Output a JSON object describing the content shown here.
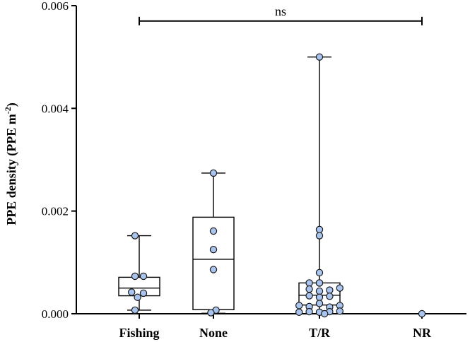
{
  "chart_data": {
    "type": "box",
    "xlabel": "",
    "ylabel": "PPE density (PPE m",
    "ylabel_sup": "-2",
    "ylabel_suffix": ")",
    "ylim": [
      0,
      0.006
    ],
    "yticks": [
      0,
      0.002,
      0.004,
      0.006
    ],
    "ytick_labels": [
      "0.000",
      "0.002",
      "0.004",
      "0.006"
    ],
    "categories": [
      "Fishing",
      "None",
      "T/R",
      "NR"
    ],
    "point_color": "#a9c4ef",
    "groups": [
      {
        "category": "Fishing",
        "min": 7e-05,
        "q1": 0.00035,
        "median": 0.0005,
        "q3": 0.00071,
        "max": 0.00152,
        "points": [
          {
            "x": -0.5,
            "y": 0.00152
          },
          {
            "x": -0.5,
            "y": 0.00073
          },
          {
            "x": 0.5,
            "y": 0.00073
          },
          {
            "x": -0.9,
            "y": 0.00042
          },
          {
            "x": 0.5,
            "y": 0.0004
          },
          {
            "x": -0.2,
            "y": 0.00032
          },
          {
            "x": -0.5,
            "y": 7e-05
          }
        ]
      },
      {
        "category": "None",
        "min": 1e-05,
        "q1": 8e-05,
        "median": 0.00106,
        "q3": 0.00188,
        "max": 0.00274,
        "points": [
          {
            "x": 0.0,
            "y": 0.00274
          },
          {
            "x": 0.0,
            "y": 0.00161
          },
          {
            "x": 0.0,
            "y": 0.00125
          },
          {
            "x": 0.0,
            "y": 0.00086
          },
          {
            "x": 0.3,
            "y": 7e-05
          },
          {
            "x": -0.3,
            "y": 2e-05
          }
        ]
      },
      {
        "category": "T/R",
        "min": 0.0,
        "q1": 0.00017,
        "median": 0.00036,
        "q3": 0.0006,
        "max": 0.005,
        "points": [
          {
            "x": 0.0,
            "y": 0.005
          },
          {
            "x": 0.0,
            "y": 0.00164
          },
          {
            "x": 0.0,
            "y": 0.00152
          },
          {
            "x": 0.0,
            "y": 0.0008
          },
          {
            "x": -1.2,
            "y": 0.0006
          },
          {
            "x": 0.0,
            "y": 0.0006
          },
          {
            "x": 0.0,
            "y": 0.0006
          },
          {
            "x": -1.2,
            "y": 0.00048
          },
          {
            "x": 0.0,
            "y": 0.00044
          },
          {
            "x": 1.2,
            "y": 0.00046
          },
          {
            "x": 2.4,
            "y": 0.0005
          },
          {
            "x": -1.2,
            "y": 0.00035
          },
          {
            "x": 0.0,
            "y": 0.00032
          },
          {
            "x": 1.2,
            "y": 0.00034
          },
          {
            "x": 0.0,
            "y": 0.0002
          },
          {
            "x": -2.4,
            "y": 0.00016
          },
          {
            "x": -1.2,
            "y": 0.00014
          },
          {
            "x": 1.2,
            "y": 0.00013
          },
          {
            "x": 2.4,
            "y": 0.00016
          },
          {
            "x": -2.4,
            "y": 3e-05
          },
          {
            "x": -1.2,
            "y": 4e-05
          },
          {
            "x": 0.0,
            "y": 3e-05
          },
          {
            "x": 1.2,
            "y": 4e-05
          },
          {
            "x": 2.4,
            "y": 5e-05
          },
          {
            "x": 0.6,
            "y": 0.0
          }
        ]
      },
      {
        "category": "NR",
        "points": [
          {
            "x": 0.0,
            "y": 0.0
          }
        ]
      }
    ],
    "significance": {
      "label": "ns",
      "from": "Fishing",
      "to": "NR",
      "y": 0.0057
    }
  }
}
